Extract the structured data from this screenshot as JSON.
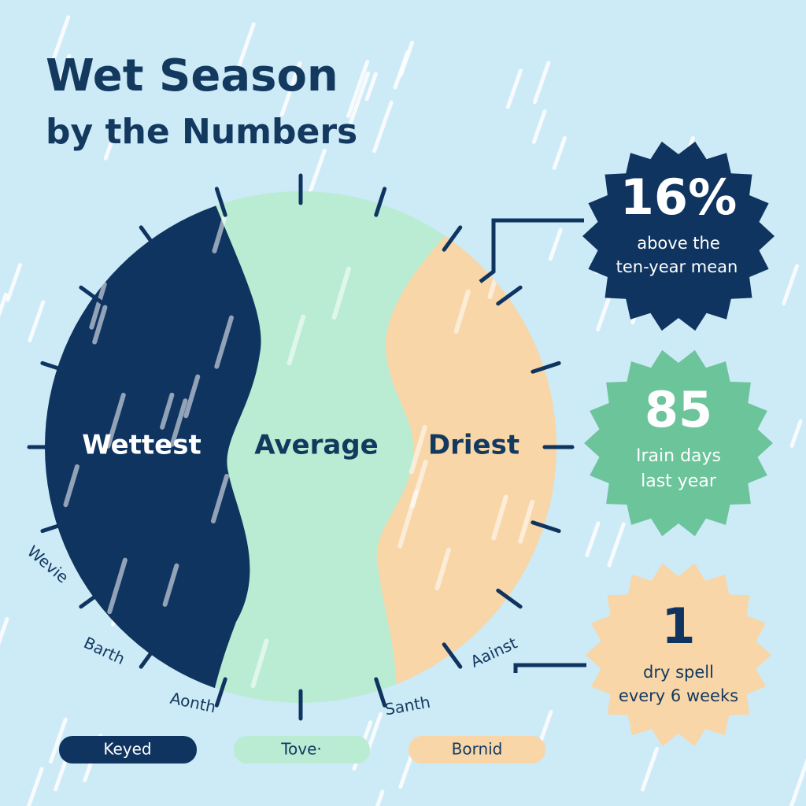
{
  "header": {
    "title_line1": "Wet Season",
    "title_line2": "by the Numbers"
  },
  "regions": [
    {
      "label": "Wettest"
    },
    {
      "label": "Average"
    },
    {
      "label": "Driest"
    }
  ],
  "outer_labels": [
    "Wevie",
    "Barth",
    "Aonth",
    "Santh",
    "Aainst"
  ],
  "badges": [
    {
      "value": "16%",
      "caption_line1": "above the",
      "caption_line2": "ten-year mean"
    },
    {
      "value": "85",
      "caption_line1": "Irain days",
      "caption_line2": "last year"
    },
    {
      "value": "1",
      "caption_line1": "dry spell",
      "caption_line2": "every 6 weeks"
    }
  ],
  "legend": [
    "Keyed",
    "Tove·",
    "Bornid"
  ]
}
